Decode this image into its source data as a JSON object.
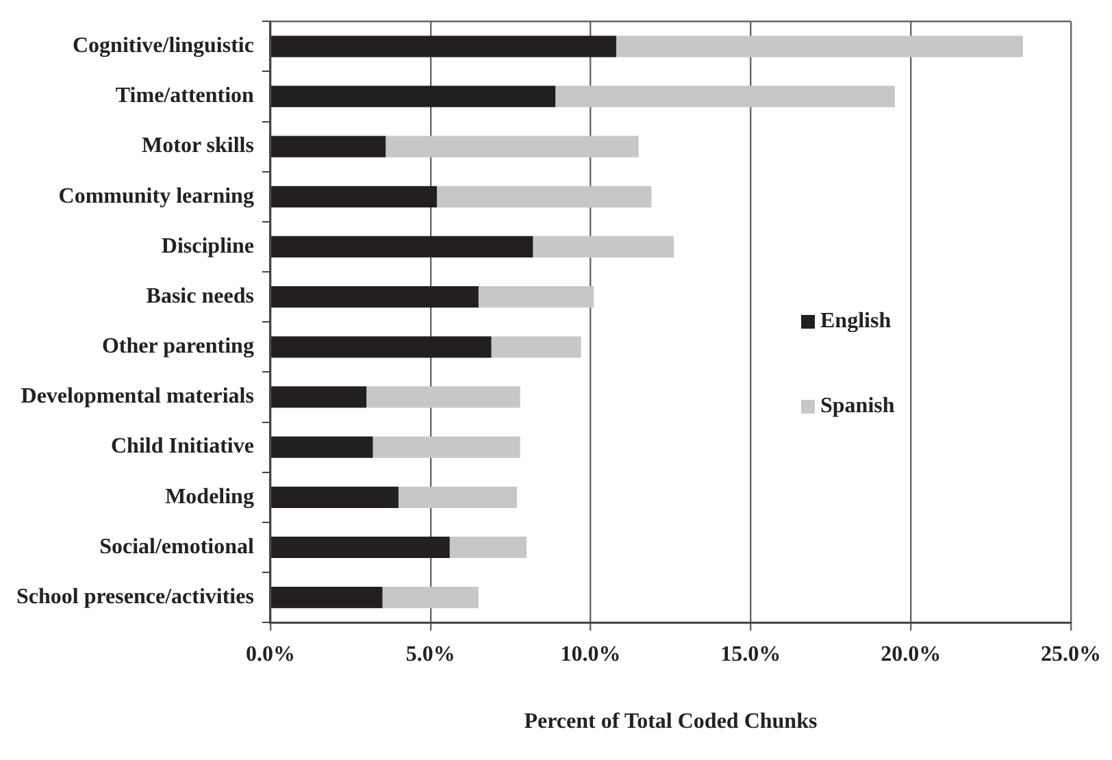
{
  "chart_data": {
    "type": "bar",
    "orientation": "horizontal",
    "stacked": true,
    "xlabel": "Percent of Total Coded Chunks",
    "categories": [
      "Cognitive/linguistic",
      "Time/attention",
      "Motor skills",
      "Community learning",
      "Discipline",
      "Basic needs",
      "Other parenting",
      "Developmental materials",
      "Child Initiative",
      "Modeling",
      "Social/emotional",
      "School presence/activities"
    ],
    "series": [
      {
        "name": "English",
        "color": "#231f20",
        "values": [
          10.8,
          8.9,
          3.6,
          5.2,
          8.2,
          6.5,
          6.9,
          3.0,
          3.2,
          4.0,
          5.6,
          3.5
        ]
      },
      {
        "name": "Spanish",
        "color": "#c6c7c8",
        "values": [
          12.7,
          10.6,
          7.9,
          6.7,
          4.4,
          3.6,
          2.8,
          4.8,
          4.6,
          3.7,
          2.4,
          3.0
        ]
      }
    ],
    "xlim": [
      0,
      25
    ],
    "xticks": [
      {
        "value": 0,
        "label": "0.0%"
      },
      {
        "value": 5,
        "label": "5.0%"
      },
      {
        "value": 10,
        "label": "10.0%"
      },
      {
        "value": 15,
        "label": "15.0%"
      },
      {
        "value": 20,
        "label": "20.0%"
      },
      {
        "value": 25,
        "label": "25.0%"
      }
    ],
    "grid": "x",
    "legend": "right"
  }
}
